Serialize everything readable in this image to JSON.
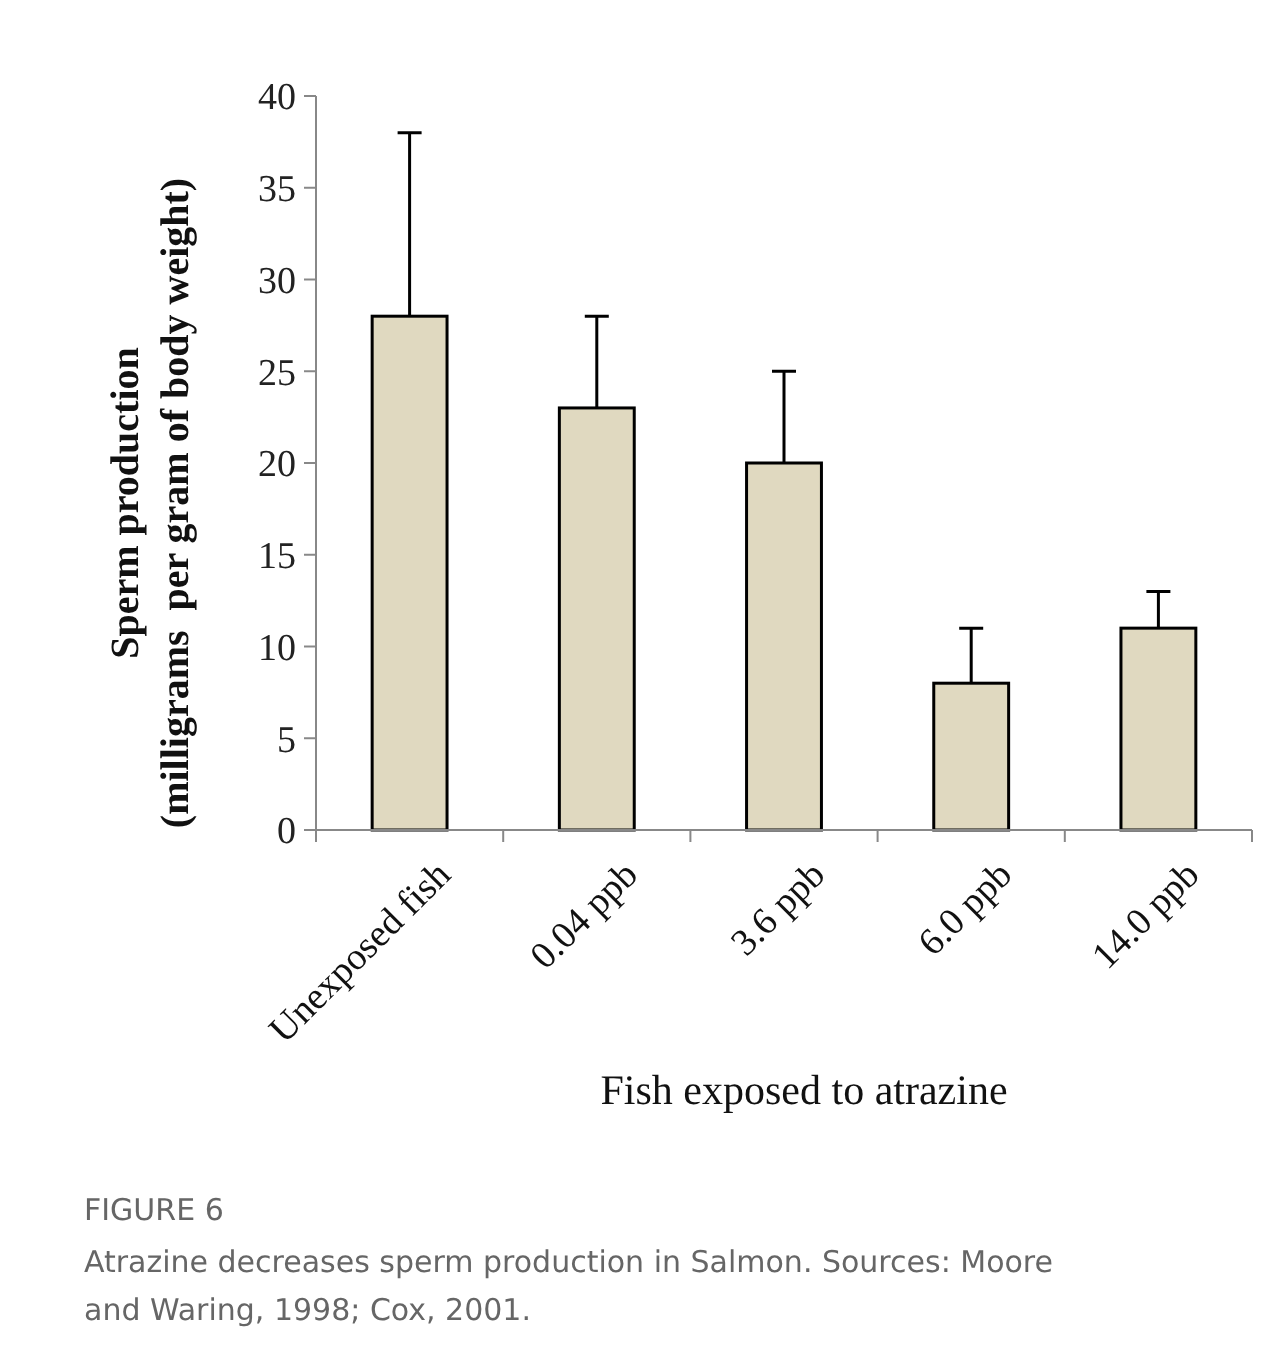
{
  "chart_data": {
    "type": "bar",
    "xlabel": "Fish exposed to atrazine",
    "ylabel": "Sperm production\n(milligrams  per gram of body weight)",
    "categories": [
      "Unexposed fish",
      "0.04 ppb",
      "3.6 ppb",
      "6.0 ppb",
      "14.0 ppb"
    ],
    "values": [
      28,
      23,
      20,
      8,
      11
    ],
    "color": "#e0d9c0",
    "errors": [
      [
        28,
        38
      ],
      [
        23,
        28
      ],
      [
        20,
        25
      ],
      [
        8,
        11
      ],
      [
        11,
        13
      ]
    ],
    "ylim": [
      0,
      40
    ],
    "yticks": [
      0,
      5,
      10,
      15,
      20,
      25,
      30,
      35,
      40
    ],
    "grid": false,
    "annotations": [
      "FIGURE 6",
      "Atrazine decreases sperm production in Salmon. Sources: Moore and Waring, 1998; Cox, 2001."
    ]
  }
}
